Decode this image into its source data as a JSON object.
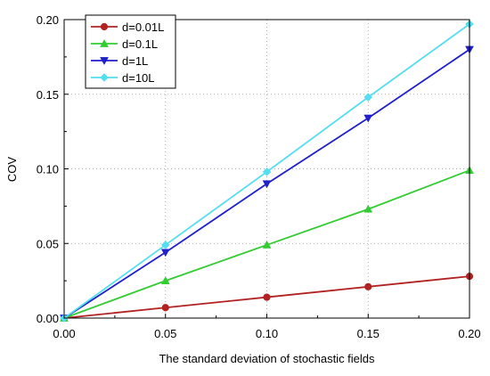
{
  "chart_data": {
    "type": "line",
    "title": "",
    "xlabel": "The standard deviation of stochastic fields",
    "ylabel": "COV",
    "xlim": [
      0.0,
      0.2
    ],
    "ylim": [
      0.0,
      0.2
    ],
    "x_ticks": [
      "0.00",
      "0.05",
      "0.10",
      "0.15",
      "0.20"
    ],
    "y_ticks": [
      "0.00",
      "0.05",
      "0.10",
      "0.15",
      "0.20"
    ],
    "x_tick_values": [
      0.0,
      0.05,
      0.1,
      0.15,
      0.2
    ],
    "y_tick_values": [
      0.0,
      0.05,
      0.1,
      0.15,
      0.2
    ],
    "grid": true,
    "legend_position": "top-left",
    "x": [
      0.0,
      0.05,
      0.1,
      0.15,
      0.2
    ],
    "series": [
      {
        "name": "d=0.01L",
        "values": [
          0.0,
          0.007,
          0.014,
          0.021,
          0.028
        ],
        "color": "#b22222",
        "marker": "circle"
      },
      {
        "name": "d=0.1L",
        "values": [
          0.0,
          0.025,
          0.049,
          0.073,
          0.099
        ],
        "color": "#33cc33",
        "marker": "triangle-up"
      },
      {
        "name": "d=1L",
        "values": [
          0.0,
          0.044,
          0.09,
          0.134,
          0.18
        ],
        "color": "#1f1fcc",
        "marker": "triangle-down"
      },
      {
        "name": "d=10L",
        "values": [
          0.0,
          0.049,
          0.098,
          0.148,
          0.197
        ],
        "color": "#55ddf0",
        "marker": "diamond"
      }
    ]
  }
}
